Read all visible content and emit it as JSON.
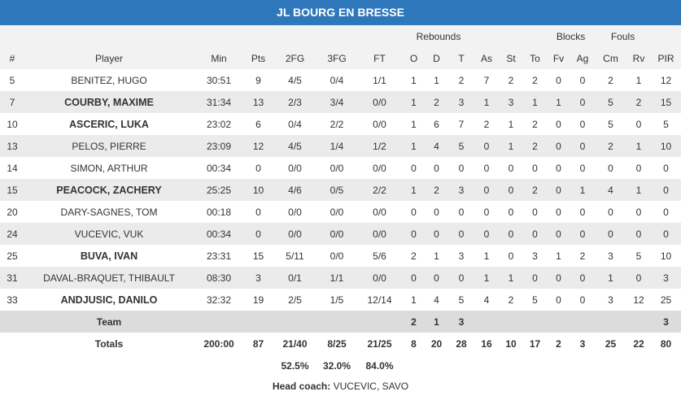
{
  "team": "JL BOURG EN BRESSE",
  "groups": {
    "rebounds": "Rebounds",
    "blocks": "Blocks",
    "fouls": "Fouls"
  },
  "columns": {
    "num": "#",
    "player": "Player",
    "min": "Min",
    "pts": "Pts",
    "fg2": "2FG",
    "fg3": "3FG",
    "ft": "FT",
    "o": "O",
    "d": "D",
    "t": "T",
    "as": "As",
    "st": "St",
    "to": "To",
    "fv": "Fv",
    "ag": "Ag",
    "cm": "Cm",
    "rv": "Rv",
    "pir": "PIR"
  },
  "players": [
    {
      "num": "5",
      "name": "BENITEZ, HUGO",
      "starter": false,
      "min": "30:51",
      "pts": "9",
      "fg2": "4/5",
      "fg3": "0/4",
      "ft": "1/1",
      "o": "1",
      "d": "1",
      "t": "2",
      "as": "7",
      "st": "2",
      "to": "2",
      "fv": "0",
      "ag": "0",
      "cm": "2",
      "rv": "1",
      "pir": "12"
    },
    {
      "num": "7",
      "name": "COURBY, MAXIME",
      "starter": true,
      "min": "31:34",
      "pts": "13",
      "fg2": "2/3",
      "fg3": "3/4",
      "ft": "0/0",
      "o": "1",
      "d": "2",
      "t": "3",
      "as": "1",
      "st": "3",
      "to": "1",
      "fv": "1",
      "ag": "0",
      "cm": "5",
      "rv": "2",
      "pir": "15"
    },
    {
      "num": "10",
      "name": "ASCERIC, LUKA",
      "starter": true,
      "min": "23:02",
      "pts": "6",
      "fg2": "0/4",
      "fg3": "2/2",
      "ft": "0/0",
      "o": "1",
      "d": "6",
      "t": "7",
      "as": "2",
      "st": "1",
      "to": "2",
      "fv": "0",
      "ag": "0",
      "cm": "5",
      "rv": "0",
      "pir": "5"
    },
    {
      "num": "13",
      "name": "PELOS, PIERRE",
      "starter": false,
      "min": "23:09",
      "pts": "12",
      "fg2": "4/5",
      "fg3": "1/4",
      "ft": "1/2",
      "o": "1",
      "d": "4",
      "t": "5",
      "as": "0",
      "st": "1",
      "to": "2",
      "fv": "0",
      "ag": "0",
      "cm": "2",
      "rv": "1",
      "pir": "10"
    },
    {
      "num": "14",
      "name": "SIMON, ARTHUR",
      "starter": false,
      "min": "00:34",
      "pts": "0",
      "fg2": "0/0",
      "fg3": "0/0",
      "ft": "0/0",
      "o": "0",
      "d": "0",
      "t": "0",
      "as": "0",
      "st": "0",
      "to": "0",
      "fv": "0",
      "ag": "0",
      "cm": "0",
      "rv": "0",
      "pir": "0"
    },
    {
      "num": "15",
      "name": "PEACOCK, ZACHERY",
      "starter": true,
      "min": "25:25",
      "pts": "10",
      "fg2": "4/6",
      "fg3": "0/5",
      "ft": "2/2",
      "o": "1",
      "d": "2",
      "t": "3",
      "as": "0",
      "st": "0",
      "to": "2",
      "fv": "0",
      "ag": "1",
      "cm": "4",
      "rv": "1",
      "pir": "0"
    },
    {
      "num": "20",
      "name": "DARY-SAGNES, TOM",
      "starter": false,
      "min": "00:18",
      "pts": "0",
      "fg2": "0/0",
      "fg3": "0/0",
      "ft": "0/0",
      "o": "0",
      "d": "0",
      "t": "0",
      "as": "0",
      "st": "0",
      "to": "0",
      "fv": "0",
      "ag": "0",
      "cm": "0",
      "rv": "0",
      "pir": "0"
    },
    {
      "num": "24",
      "name": "VUCEVIC, VUK",
      "starter": false,
      "min": "00:34",
      "pts": "0",
      "fg2": "0/0",
      "fg3": "0/0",
      "ft": "0/0",
      "o": "0",
      "d": "0",
      "t": "0",
      "as": "0",
      "st": "0",
      "to": "0",
      "fv": "0",
      "ag": "0",
      "cm": "0",
      "rv": "0",
      "pir": "0"
    },
    {
      "num": "25",
      "name": "BUVA, IVAN",
      "starter": true,
      "min": "23:31",
      "pts": "15",
      "fg2": "5/11",
      "fg3": "0/0",
      "ft": "5/6",
      "o": "2",
      "d": "1",
      "t": "3",
      "as": "1",
      "st": "0",
      "to": "3",
      "fv": "1",
      "ag": "2",
      "cm": "3",
      "rv": "5",
      "pir": "10"
    },
    {
      "num": "31",
      "name": "DAVAL-BRAQUET, THIBAULT",
      "starter": false,
      "min": "08:30",
      "pts": "3",
      "fg2": "0/1",
      "fg3": "1/1",
      "ft": "0/0",
      "o": "0",
      "d": "0",
      "t": "0",
      "as": "1",
      "st": "1",
      "to": "0",
      "fv": "0",
      "ag": "0",
      "cm": "1",
      "rv": "0",
      "pir": "3"
    },
    {
      "num": "33",
      "name": "ANDJUSIC, DANILO",
      "starter": true,
      "min": "32:32",
      "pts": "19",
      "fg2": "2/5",
      "fg3": "1/5",
      "ft": "12/14",
      "o": "1",
      "d": "4",
      "t": "5",
      "as": "4",
      "st": "2",
      "to": "5",
      "fv": "0",
      "ag": "0",
      "cm": "3",
      "rv": "12",
      "pir": "25"
    }
  ],
  "team_row": {
    "label": "Team",
    "o": "2",
    "d": "1",
    "t": "3",
    "pir": "3"
  },
  "totals": {
    "label": "Totals",
    "min": "200:00",
    "pts": "87",
    "fg2": "21/40",
    "fg3": "8/25",
    "ft": "21/25",
    "o": "8",
    "d": "20",
    "t": "28",
    "as": "16",
    "st": "10",
    "to": "17",
    "fv": "2",
    "ag": "3",
    "cm": "25",
    "rv": "22",
    "pir": "80"
  },
  "percentages": {
    "fg2": "52.5%",
    "fg3": "32.0%",
    "ft": "84.0%"
  },
  "coach": {
    "label": "Head coach:",
    "name": "VUCEVIC, SAVO"
  }
}
